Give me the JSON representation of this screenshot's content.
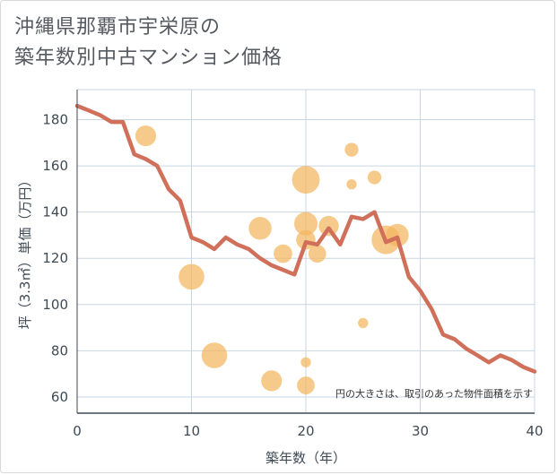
{
  "chart_data": {
    "type": "scatter",
    "title_lines": [
      "沖縄県那覇市宇栄原の",
      "築年数別中古マンション価格"
    ],
    "xlabel": "築年数（年）",
    "ylabel": "坪（3.3㎡）単価（万円）",
    "note": "円の大きさは、取引のあった物件面積を示す",
    "xlim": [
      0,
      40
    ],
    "ylim": [
      53,
      193
    ],
    "x_ticks": [
      0,
      10,
      20,
      30,
      40
    ],
    "y_ticks": [
      60,
      80,
      100,
      120,
      140,
      160,
      180
    ],
    "grid": true,
    "colors": {
      "bubble": "#f3b55e",
      "line": "#d0705a",
      "grid": "#c9d6e3",
      "axis": "#3f4a55"
    },
    "series": [
      {
        "kind": "bubble",
        "points": [
          {
            "x": 6,
            "y": 173,
            "size": 60
          },
          {
            "x": 10,
            "y": 112,
            "size": 100
          },
          {
            "x": 12,
            "y": 78,
            "size": 100
          },
          {
            "x": 16,
            "y": 133,
            "size": 75
          },
          {
            "x": 17,
            "y": 67,
            "size": 60
          },
          {
            "x": 18,
            "y": 122,
            "size": 45
          },
          {
            "x": 20,
            "y": 154,
            "size": 120
          },
          {
            "x": 20,
            "y": 135,
            "size": 80
          },
          {
            "x": 20,
            "y": 128,
            "size": 50
          },
          {
            "x": 20,
            "y": 75,
            "size": 8
          },
          {
            "x": 20,
            "y": 65,
            "size": 40
          },
          {
            "x": 21,
            "y": 122,
            "size": 40
          },
          {
            "x": 22,
            "y": 134,
            "size": 55
          },
          {
            "x": 24,
            "y": 167,
            "size": 20
          },
          {
            "x": 24,
            "y": 152,
            "size": 8
          },
          {
            "x": 25,
            "y": 92,
            "size": 8
          },
          {
            "x": 26,
            "y": 155,
            "size": 20
          },
          {
            "x": 27,
            "y": 128,
            "size": 130
          },
          {
            "x": 28,
            "y": 130,
            "size": 75
          }
        ]
      },
      {
        "kind": "line",
        "x": [
          0,
          1,
          2,
          3,
          4,
          5,
          6,
          7,
          8,
          9,
          10,
          11,
          12,
          13,
          14,
          15,
          16,
          17,
          18,
          19,
          20,
          21,
          22,
          23,
          24,
          25,
          26,
          27,
          28,
          29,
          30,
          31,
          32,
          33,
          34,
          35,
          36,
          37,
          38,
          39,
          40
        ],
        "y": [
          186,
          184,
          182,
          179,
          179,
          165,
          163,
          160,
          150,
          145,
          129,
          127,
          124,
          129,
          126,
          124,
          120,
          117,
          115,
          113,
          127,
          126,
          133,
          126,
          138,
          137,
          140,
          127,
          129,
          112,
          106,
          98,
          87,
          85,
          81,
          78,
          75,
          78,
          76,
          73,
          71
        ]
      }
    ]
  }
}
